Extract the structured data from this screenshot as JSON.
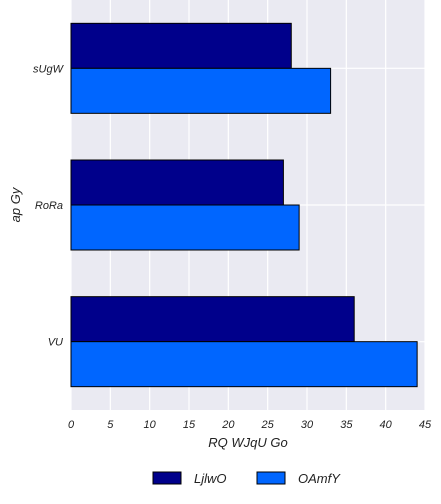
{
  "chart_data": {
    "type": "bar",
    "orientation": "horizontal",
    "title": "",
    "xlabel": "RQ WJqU Go",
    "ylabel": "ap Gy",
    "categories": [
      "sUgW",
      "RoRa",
      "VU"
    ],
    "series": [
      {
        "name": "LjlwO",
        "values": [
          28,
          27,
          36
        ],
        "color": "#00008b"
      },
      {
        "name": "OAmfY",
        "values": [
          33,
          29,
          44
        ],
        "color": "#0066ff"
      }
    ],
    "xlim": [
      0,
      45
    ],
    "xticks": [
      "0",
      "5",
      "10",
      "15",
      "20",
      "25",
      "30",
      "35",
      "40",
      "45"
    ],
    "grid": true,
    "plot_background": "#eaeaf2",
    "legend_placement": "bottom-center"
  }
}
